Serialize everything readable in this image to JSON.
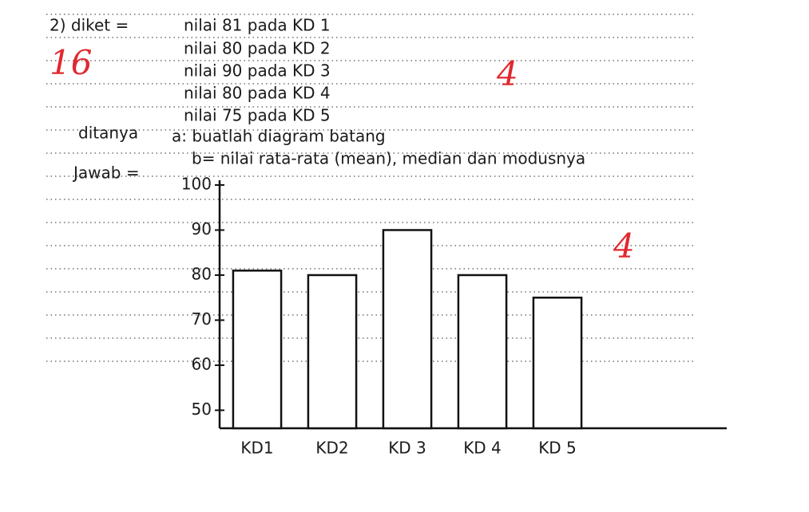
{
  "header": {
    "problem": "2) diket =",
    "lines": [
      "nilai 81 pada KD 1",
      "nilai 80 pada KD 2",
      "nilai 90 pada KD 3",
      "nilai 80 pada KD 4",
      "nilai 75 pada KD 5"
    ]
  },
  "question": {
    "label": "ditanya",
    "a": "a: buatlah diagram batang",
    "b": "b= nilai rata-rata (mean), median dan modusnya"
  },
  "answer_label": "Jawab =",
  "grades": [
    "16",
    "4",
    "4"
  ],
  "chart_data": {
    "type": "bar",
    "categories": [
      "KD1",
      "KD2",
      "KD 3",
      "KD 4",
      "KD 5"
    ],
    "values": [
      81,
      80,
      90,
      80,
      75
    ],
    "color": "#ffffff",
    "ylim": [
      46,
      100
    ],
    "yticks": [
      50,
      60,
      70,
      80,
      90,
      100
    ]
  }
}
